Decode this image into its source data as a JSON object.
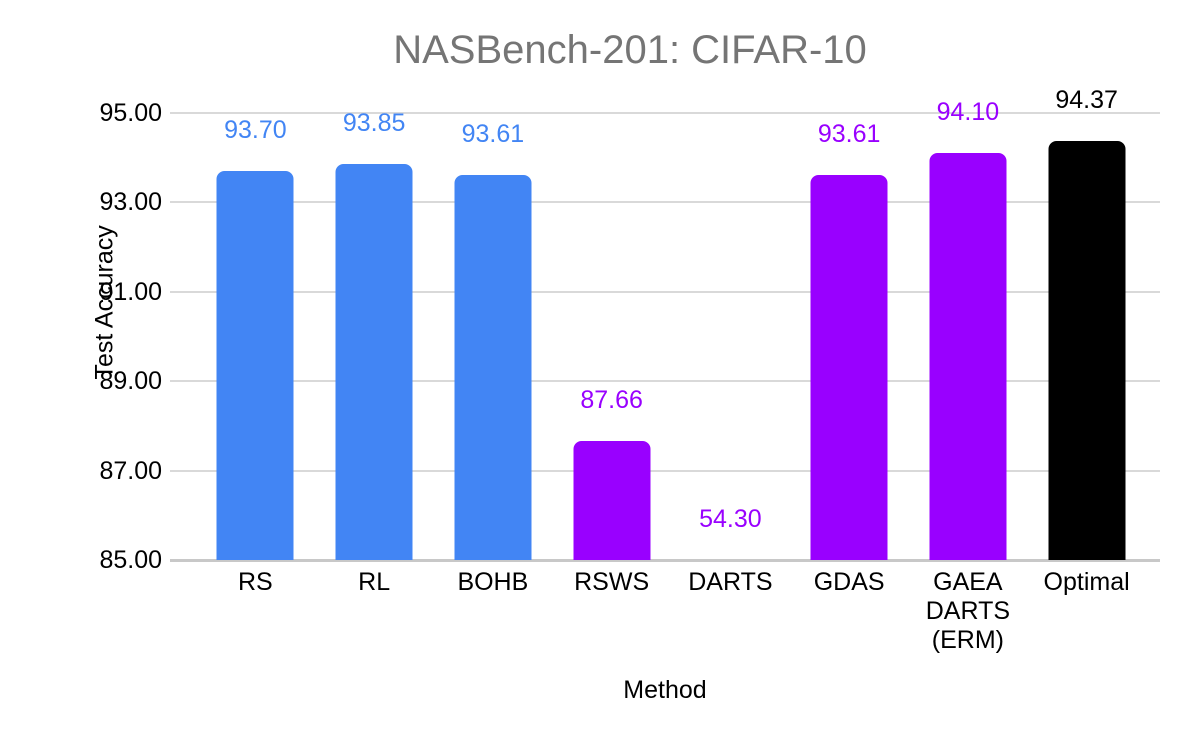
{
  "chart_data": {
    "type": "bar",
    "title": "NASBench-201: CIFAR-10",
    "xlabel": "Method",
    "ylabel": "Test Accuracy",
    "categories": [
      "RS",
      "RL",
      "BOHB",
      "RSWS",
      "DARTS",
      "GDAS",
      "GAEA DARTS (ERM)",
      "Optimal"
    ],
    "tick_display": [
      "RS",
      "RL",
      "BOHB",
      "RSWS",
      "DARTS",
      "GDAS",
      "GAEA\nDARTS\n(ERM)",
      "Optimal"
    ],
    "values": [
      93.7,
      93.85,
      93.61,
      87.66,
      54.3,
      93.61,
      94.1,
      94.37
    ],
    "value_labels": [
      "93.70",
      "93.85",
      "93.61",
      "87.66",
      "54.30",
      "93.61",
      "94.10",
      "94.37"
    ],
    "bar_colors": [
      "#4285F4",
      "#4285F4",
      "#4285F4",
      "#9900FF",
      "#9900FF",
      "#9900FF",
      "#9900FF",
      "#000000"
    ],
    "ylim": [
      85,
      95
    ],
    "ytick_values": [
      95,
      93,
      91,
      89,
      87,
      85
    ],
    "ytick_labels": [
      "95.00",
      "93.00",
      "91.00",
      "89.00",
      "87.00",
      "85.00"
    ],
    "grid": true,
    "legend_position": "none"
  },
  "colors": {
    "title_text": "#757575",
    "axis_text": "#000000",
    "gridline": "#d9d9d9",
    "baseline": "#c8c8c8",
    "background": "#ffffff",
    "series_blue": "#4285F4",
    "series_purple": "#9900FF",
    "series_black": "#000000"
  }
}
